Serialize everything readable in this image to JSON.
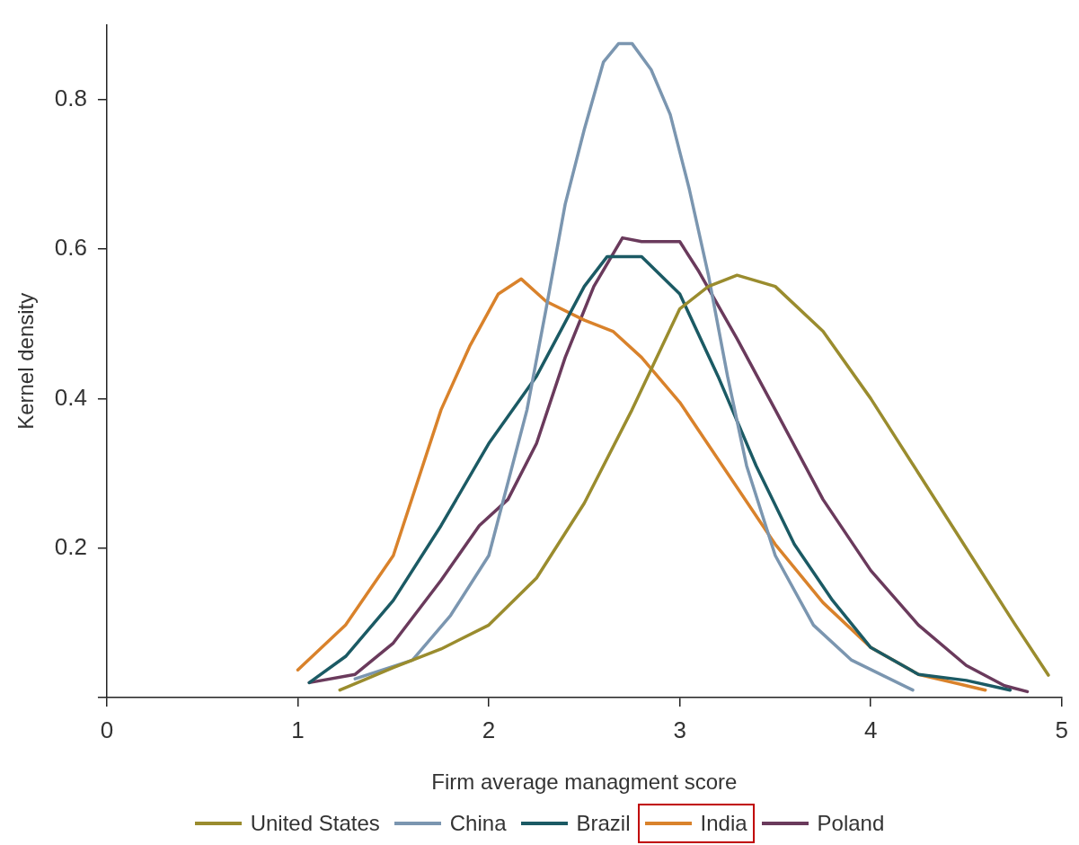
{
  "chart_data": {
    "type": "line",
    "xlabel": "Firm average managment score",
    "ylabel": "Kernel density",
    "xlim": [
      0,
      5
    ],
    "xticks": [
      0,
      1,
      2,
      3,
      4,
      5
    ],
    "ylim": [
      0,
      0.9
    ],
    "yticks": [
      {
        "value": 0,
        "label": null
      },
      0.2,
      0.4,
      0.6,
      0.8
    ],
    "grid": false,
    "legend": "bottom",
    "marker": "none",
    "line_style": "solid",
    "series": [
      {
        "name": "United States",
        "color": "#9a8c2e",
        "x": [
          1.22,
          1.5,
          1.75,
          2,
          2.25,
          2.5,
          2.75,
          3,
          3.15,
          3.3,
          3.5,
          3.75,
          4,
          4.25,
          4.5,
          4.75,
          4.93
        ],
        "values": [
          0.01,
          0.04,
          0.065,
          0.097,
          0.16,
          0.26,
          0.385,
          0.52,
          0.55,
          0.565,
          0.55,
          0.49,
          0.4,
          0.3,
          0.2,
          0.1,
          0.03
        ]
      },
      {
        "name": "China",
        "color": "#7b96b0",
        "x": [
          1.3,
          1.6,
          1.8,
          2,
          2.2,
          2.3,
          2.4,
          2.5,
          2.6,
          2.68,
          2.75,
          2.85,
          2.95,
          3.05,
          3.15,
          3.25,
          3.35,
          3.5,
          3.7,
          3.9,
          4.22
        ],
        "values": [
          0.025,
          0.05,
          0.11,
          0.19,
          0.385,
          0.52,
          0.66,
          0.76,
          0.85,
          0.875,
          0.875,
          0.84,
          0.78,
          0.68,
          0.565,
          0.43,
          0.31,
          0.19,
          0.097,
          0.05,
          0.01
        ]
      },
      {
        "name": "Brazil",
        "color": "#1b5a64",
        "x": [
          1.06,
          1.25,
          1.5,
          1.75,
          2,
          2.25,
          2.5,
          2.62,
          2.8,
          3,
          3.2,
          3.4,
          3.6,
          3.8,
          4,
          4.25,
          4.5,
          4.73
        ],
        "values": [
          0.02,
          0.055,
          0.13,
          0.23,
          0.34,
          0.43,
          0.55,
          0.59,
          0.59,
          0.54,
          0.43,
          0.31,
          0.205,
          0.13,
          0.067,
          0.031,
          0.023,
          0.01
        ]
      },
      {
        "name": "India",
        "color": "#d9822b",
        "x": [
          1,
          1.25,
          1.5,
          1.75,
          1.9,
          2.05,
          2.17,
          2.3,
          2.5,
          2.65,
          2.8,
          3,
          3.25,
          3.5,
          3.75,
          4,
          4.25,
          4.5,
          4.6
        ],
        "values": [
          0.037,
          0.097,
          0.19,
          0.385,
          0.47,
          0.54,
          0.56,
          0.53,
          0.505,
          0.49,
          0.455,
          0.395,
          0.3,
          0.205,
          0.127,
          0.067,
          0.031,
          0.016,
          0.01
        ]
      },
      {
        "name": "Poland",
        "color": "#6a3a5c",
        "x": [
          1.06,
          1.3,
          1.5,
          1.75,
          1.95,
          2.1,
          2.25,
          2.4,
          2.55,
          2.7,
          2.8,
          3,
          3.1,
          3.3,
          3.5,
          3.75,
          4,
          4.25,
          4.5,
          4.7,
          4.82
        ],
        "values": [
          0.02,
          0.031,
          0.073,
          0.157,
          0.23,
          0.265,
          0.34,
          0.455,
          0.55,
          0.615,
          0.61,
          0.61,
          0.57,
          0.48,
          0.385,
          0.265,
          0.17,
          0.097,
          0.043,
          0.016,
          0.008
        ]
      }
    ]
  }
}
